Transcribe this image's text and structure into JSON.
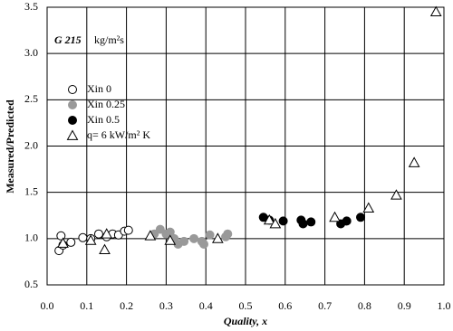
{
  "chart_data": {
    "type": "scatter",
    "annotation_bold": "G 215",
    "annotation_unit": "kg/m²s",
    "x_label": "Quality, x",
    "y_label": "Measured/Predicted",
    "xlim": [
      0,
      1
    ],
    "ylim": [
      0.5,
      3.5
    ],
    "xticks": [
      {
        "value": 0,
        "label": "0.0"
      },
      0.1,
      0.2,
      0.3,
      0.4,
      0.5,
      0.6,
      0.7,
      0.8,
      0.9,
      {
        "value": 1,
        "label": "1.0"
      }
    ],
    "yticks": [
      0.5,
      {
        "value": 1,
        "label": "1.0"
      },
      1.5,
      {
        "value": 2,
        "label": "2.0"
      },
      2.5,
      {
        "value": 3,
        "label": "3.0"
      },
      3.5
    ],
    "grid": true,
    "legend": "upper-left",
    "series": [
      {
        "name": "Xin 0",
        "marker": "circle",
        "filled": false,
        "color": "#000000",
        "x": [
          0.03,
          0.035,
          0.04,
          0.06,
          0.09,
          0.11,
          0.13,
          0.15,
          0.165,
          0.18,
          0.195,
          0.205
        ],
        "values": [
          0.87,
          1.03,
          0.93,
          0.96,
          1.01,
          1.0,
          1.05,
          1.02,
          1.05,
          1.04,
          1.08,
          1.09
        ]
      },
      {
        "name": "Xin 0.25",
        "marker": "circle",
        "filled": true,
        "color": "#999999",
        "x": [
          0.27,
          0.285,
          0.3,
          0.31,
          0.32,
          0.33,
          0.345,
          0.37,
          0.39,
          0.395,
          0.41,
          0.45,
          0.455
        ],
        "values": [
          1.05,
          1.1,
          1.05,
          1.07,
          1.0,
          0.94,
          0.97,
          1.0,
          0.97,
          0.94,
          1.04,
          1.02,
          1.05
        ]
      },
      {
        "name": "Xin 0.5",
        "marker": "circle",
        "filled": true,
        "color": "#000000",
        "x": [
          0.545,
          0.56,
          0.595,
          0.64,
          0.645,
          0.665,
          0.74,
          0.755,
          0.79
        ],
        "values": [
          1.23,
          1.2,
          1.19,
          1.2,
          1.16,
          1.18,
          1.16,
          1.19,
          1.23
        ]
      },
      {
        "name": "q= 6 kW/m² K",
        "marker": "triangle",
        "filled": false,
        "color": "#000000",
        "x": [
          0.04,
          0.11,
          0.145,
          0.15,
          0.26,
          0.31,
          0.43,
          0.56,
          0.575,
          0.725,
          0.81,
          0.88,
          0.925,
          0.98
        ],
        "values": [
          0.95,
          0.98,
          0.88,
          1.05,
          1.03,
          0.98,
          1.0,
          1.2,
          1.16,
          1.23,
          1.33,
          1.47,
          1.82,
          3.45
        ]
      }
    ]
  }
}
